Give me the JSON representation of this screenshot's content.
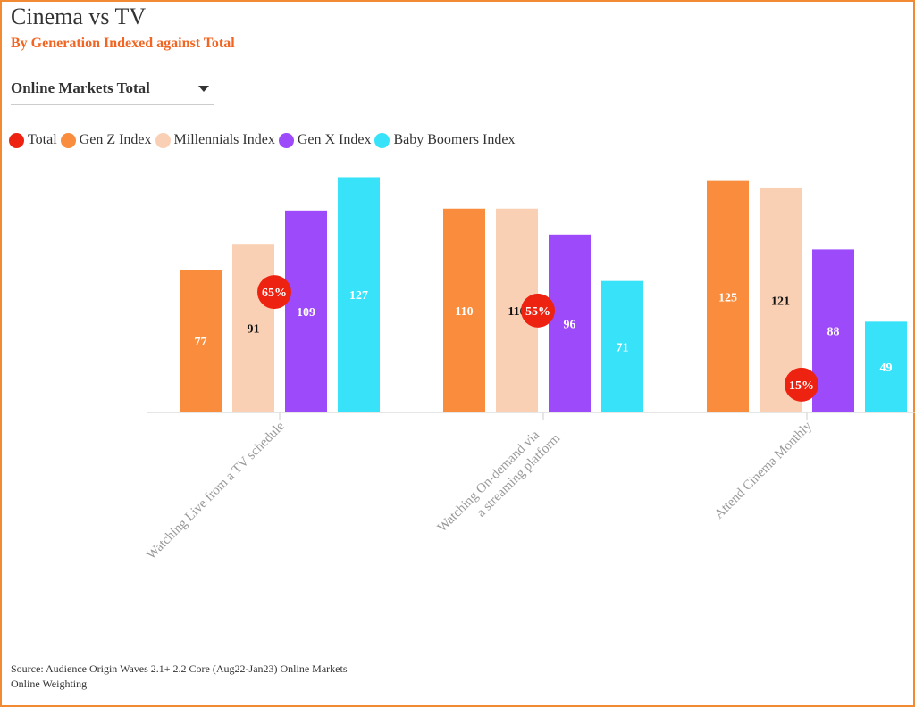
{
  "header": {
    "title": "Cinema vs TV",
    "subtitle": "By Generation Indexed against Total"
  },
  "filter": {
    "selected": "Online Markets Total"
  },
  "colors": {
    "total": "#ee2211",
    "genz": "#f98c3d",
    "millennials": "#fad0b5",
    "genx": "#9d4bfa",
    "boomers": "#38e3f9",
    "frame": "#f28a33",
    "subtitle": "#f26522"
  },
  "legend": [
    {
      "label": "Total",
      "color_key": "total"
    },
    {
      "label": "Gen Z Index",
      "color_key": "genz"
    },
    {
      "label": "Millennials Index",
      "color_key": "millennials"
    },
    {
      "label": "Gen X Index",
      "color_key": "genx"
    },
    {
      "label": "Baby Boomers Index",
      "color_key": "boomers"
    }
  ],
  "chart_data": {
    "type": "bar",
    "categories": [
      "Watching Live from a TV schedule",
      "Watching On-demand via a streaming platform",
      "Attend Cinema Monthly"
    ],
    "series": [
      {
        "name": "Gen Z Index",
        "color_key": "genz",
        "label_color": "#ffffff",
        "values": [
          77,
          110,
          125
        ]
      },
      {
        "name": "Millennials Index",
        "color_key": "millennials",
        "label_color": "#111111",
        "values": [
          91,
          110,
          121
        ]
      },
      {
        "name": "Gen X Index",
        "color_key": "genx",
        "label_color": "#ffffff",
        "values": [
          109,
          96,
          88
        ]
      },
      {
        "name": "Baby Boomers Index",
        "color_key": "boomers",
        "label_color": "#ffffff",
        "values": [
          127,
          71,
          49
        ]
      }
    ],
    "total": {
      "name": "Total",
      "values": [
        65,
        55,
        15
      ],
      "labels": [
        "65%",
        "55%",
        "15%"
      ]
    },
    "ylim": [
      0,
      130
    ],
    "legend_position": "top-left"
  },
  "footer": {
    "source_line1": "Source: Audience Origin Waves 2.1+ 2.2 Core (Aug22-Jan23) Online Markets",
    "source_line2": "Online Weighting"
  }
}
